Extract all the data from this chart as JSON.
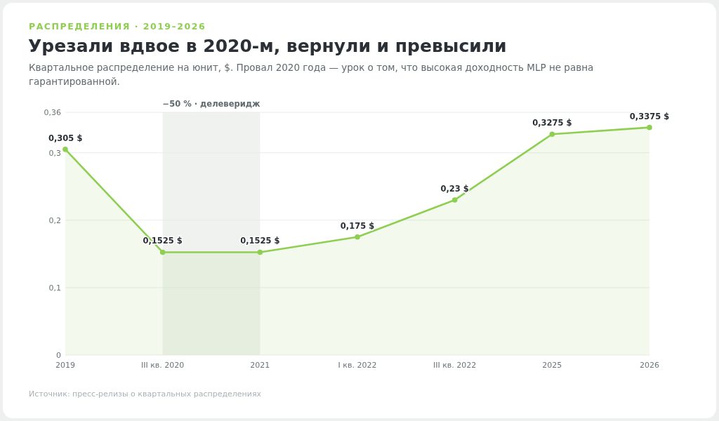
{
  "chart_data": {
    "type": "area",
    "subtitle": "РАСПРЕДЕЛЕНИЯ · 2019–2026",
    "title": "Урезали вдвое в 2020-м, вернули и превысили",
    "annotations": [
      "Квартальное распределение на юнит, $. Провал 2020 года — урок о том, что высокая доходность MLP не равна гарантированной.",
      "Источник: пресс-релизы о квартальных распределениях"
    ],
    "categories": [
      "2019",
      "III кв. 2020",
      "2021",
      "I кв. 2022",
      "III кв. 2022",
      "2025",
      "2026"
    ],
    "series": [
      {
        "color": "#8ecf52",
        "values": [
          0.305,
          0.1525,
          0.1525,
          0.175,
          0.23,
          0.3275,
          0.3375
        ],
        "value_labels": [
          "0,305 $",
          "0,1525 $",
          "0,1525 $",
          "0,175 $",
          "0,23 $",
          "0,3275 $",
          "0,3375 $"
        ]
      }
    ],
    "ylim": [
      0,
      0.36
    ],
    "yticks": [
      {
        "value": 0,
        "label": "0"
      },
      {
        "value": 0.1,
        "label": "0,1"
      },
      {
        "value": 0.2,
        "label": "0,2"
      },
      {
        "value": 0.3,
        "label": "0,3"
      },
      {
        "value": 0.36,
        "label": "0,36"
      }
    ],
    "bands": [
      {
        "axis": "x",
        "from": "III кв. 2020",
        "to": "2021",
        "label": "−50 % · делеверидж",
        "color": "#e4e7e4"
      }
    ],
    "grid": "y",
    "marker": "circle"
  }
}
